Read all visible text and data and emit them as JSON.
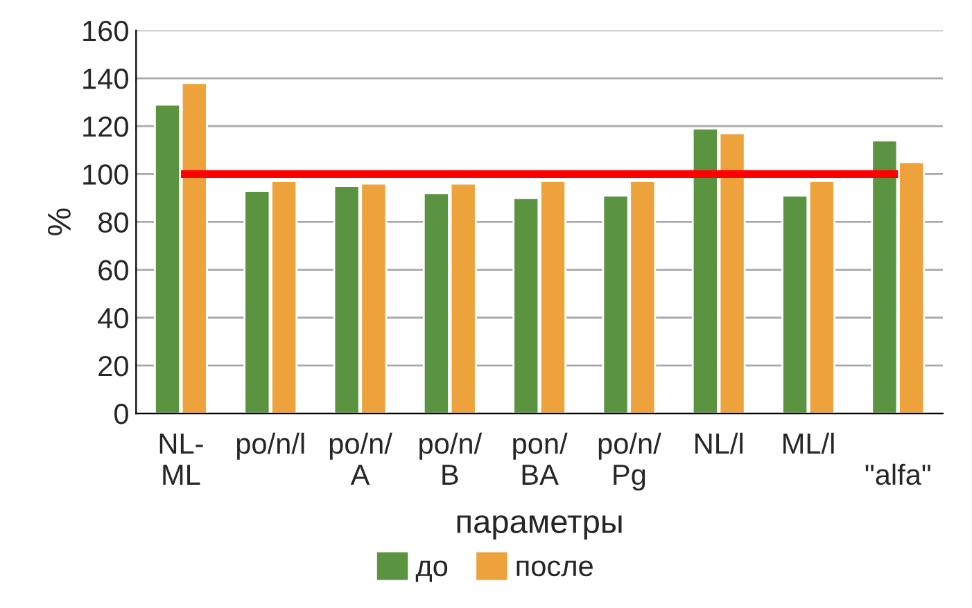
{
  "chart_data": {
    "type": "bar",
    "xlabel": "параметры",
    "ylabel": "%",
    "categories": [
      "NL-\nML",
      "po/n/l",
      "po/n/\nA",
      "po/n/\nB",
      "pon/\nBA",
      "po/n/\nPg",
      "NL/l",
      "ML/l",
      "\n\"alfa\""
    ],
    "series": [
      {
        "name": "до",
        "color": "#5b9440",
        "values": [
          129,
          93,
          95,
          92,
          90,
          91,
          119,
          91,
          114
        ]
      },
      {
        "name": "после",
        "color": "#eda23c",
        "values": [
          138,
          97,
          96,
          96,
          97,
          97,
          117,
          97,
          105
        ]
      },
      {
        "type": "line",
        "color": "#ff0000",
        "values": [
          100,
          100,
          100,
          100,
          100,
          100,
          100,
          100,
          100
        ]
      }
    ],
    "ylim": [
      0,
      160
    ],
    "yticks": [
      0,
      20,
      40,
      60,
      80,
      100,
      120,
      140,
      160
    ],
    "grid": "y",
    "legend": "bottom"
  }
}
